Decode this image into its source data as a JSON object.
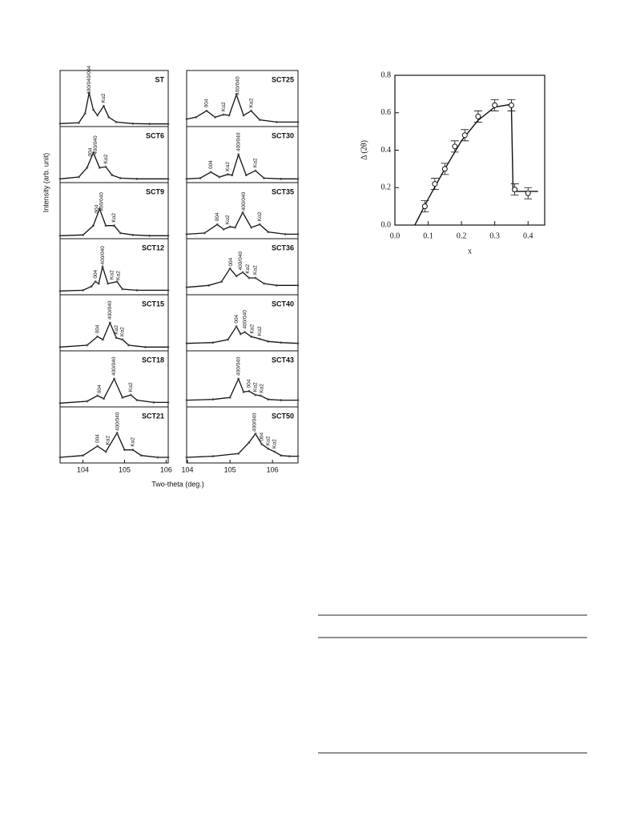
{
  "chart_data": [
    {
      "type": "panel-stack",
      "ylabel": "Intensity (arb. unit)",
      "xlabel": "Two-theta (deg.)",
      "xlim": [
        103.45,
        106.05
      ],
      "ylim": [
        0,
        1.5
      ],
      "xticks": [
        104,
        105,
        106
      ],
      "panels": [
        {
          "label": "ST",
          "x": [
            103.45,
            103.9,
            104.05,
            104.15,
            104.25,
            104.35,
            104.5,
            104.62,
            104.8,
            105.2,
            105.6,
            106.05
          ],
          "values": [
            0.08,
            0.1,
            0.35,
            0.9,
            0.45,
            0.3,
            0.55,
            0.25,
            0.12,
            0.08,
            0.07,
            0.07
          ],
          "annotations": [
            {
              "text": "400/040/004",
              "x": 104.15
            },
            {
              "text": "Kα2",
              "x": 104.5
            }
          ]
        },
        {
          "label": "SCT6",
          "x": [
            103.45,
            103.9,
            104.1,
            104.25,
            104.4,
            104.55,
            104.7,
            104.9,
            105.3,
            106.05
          ],
          "values": [
            0.1,
            0.15,
            0.4,
            0.8,
            0.4,
            0.42,
            0.2,
            0.12,
            0.1,
            0.1
          ],
          "annotations": [
            {
              "text": "004",
              "x": 104.18
            },
            {
              "text": "400/040",
              "x": 104.3
            },
            {
              "text": "Kα2",
              "x": 104.55
            }
          ]
        },
        {
          "label": "SCT9",
          "x": [
            103.45,
            104.0,
            104.25,
            104.4,
            104.55,
            104.75,
            104.9,
            105.2,
            105.6,
            106.05
          ],
          "values": [
            0.08,
            0.1,
            0.35,
            0.8,
            0.35,
            0.35,
            0.15,
            0.1,
            0.08,
            0.08
          ],
          "annotations": [
            {
              "text": "004",
              "x": 104.33
            },
            {
              "text": "400/040",
              "x": 104.45
            },
            {
              "text": "Kα2",
              "x": 104.75
            }
          ]
        },
        {
          "label": "SCT12",
          "x": [
            103.45,
            104.0,
            104.2,
            104.3,
            104.38,
            104.47,
            104.6,
            104.82,
            104.95,
            105.3,
            106.05
          ],
          "values": [
            0.1,
            0.12,
            0.22,
            0.35,
            0.3,
            0.75,
            0.3,
            0.35,
            0.15,
            0.12,
            0.12
          ],
          "annotations": [
            {
              "text": "004",
              "x": 104.3
            },
            {
              "text": "400/040",
              "x": 104.48
            },
            {
              "text": "Kα2",
              "x": 104.7
            },
            {
              "text": "Kα2",
              "x": 104.85
            }
          ]
        },
        {
          "label": "SCT15",
          "x": [
            103.45,
            104.1,
            104.35,
            104.48,
            104.65,
            104.8,
            104.95,
            105.1,
            105.5,
            106.05
          ],
          "values": [
            0.1,
            0.15,
            0.38,
            0.3,
            0.75,
            0.35,
            0.3,
            0.15,
            0.1,
            0.1
          ],
          "annotations": [
            {
              "text": "004",
              "x": 104.35
            },
            {
              "text": "400/040",
              "x": 104.65
            },
            {
              "text": "Kα2",
              "x": 104.8
            },
            {
              "text": "Kα2",
              "x": 104.95
            }
          ]
        },
        {
          "label": "SCT18",
          "x": [
            103.45,
            104.1,
            104.35,
            104.5,
            104.75,
            104.95,
            105.15,
            105.3,
            105.7,
            106.05
          ],
          "values": [
            0.1,
            0.15,
            0.3,
            0.22,
            0.75,
            0.25,
            0.32,
            0.18,
            0.12,
            0.12
          ],
          "annotations": [
            {
              "text": "004",
              "x": 104.4
            },
            {
              "text": "400/040",
              "x": 104.75
            },
            {
              "text": "Kα2",
              "x": 105.15
            }
          ]
        },
        {
          "label": "SCT21",
          "x": [
            103.45,
            104.0,
            104.35,
            104.55,
            104.82,
            105.0,
            105.2,
            105.4,
            105.8,
            106.05
          ],
          "values": [
            0.15,
            0.2,
            0.45,
            0.3,
            0.8,
            0.35,
            0.35,
            0.2,
            0.15,
            0.15
          ],
          "annotations": [
            {
              "text": "004",
              "x": 104.35
            },
            {
              "text": "Kα2",
              "x": 104.6
            },
            {
              "text": "400/040",
              "x": 104.83
            },
            {
              "text": "Kα2",
              "x": 105.2
            }
          ]
        }
      ]
    },
    {
      "type": "panel-stack",
      "xlim": [
        103.98,
        106.6
      ],
      "ylim": [
        0,
        1.5
      ],
      "xticks": [
        104,
        105,
        106
      ],
      "panels": [
        {
          "label": "SCT25",
          "x": [
            103.98,
            104.2,
            104.45,
            104.65,
            104.85,
            104.98,
            105.15,
            105.32,
            105.5,
            105.7,
            106.1,
            106.6
          ],
          "values": [
            0.2,
            0.25,
            0.42,
            0.25,
            0.32,
            0.3,
            0.85,
            0.3,
            0.42,
            0.18,
            0.12,
            0.12
          ],
          "annotations": [
            {
              "text": "004",
              "x": 104.45
            },
            {
              "text": "Kα2",
              "x": 104.85
            },
            {
              "text": "400/040",
              "x": 105.18
            },
            {
              "text": "Kα2",
              "x": 105.5
            }
          ]
        },
        {
          "label": "SCT30",
          "x": [
            103.98,
            104.3,
            104.55,
            104.75,
            104.95,
            105.05,
            105.2,
            105.38,
            105.6,
            105.8,
            106.2,
            106.6
          ],
          "values": [
            0.1,
            0.12,
            0.28,
            0.15,
            0.22,
            0.2,
            0.75,
            0.2,
            0.32,
            0.12,
            0.1,
            0.1
          ],
          "annotations": [
            {
              "text": "004",
              "x": 104.55
            },
            {
              "text": "Kα2",
              "x": 104.95
            },
            {
              "text": "400/040",
              "x": 105.2
            },
            {
              "text": "Kα2",
              "x": 105.6
            }
          ]
        },
        {
          "label": "SCT35",
          "x": [
            103.98,
            104.4,
            104.7,
            104.85,
            105.0,
            105.12,
            105.3,
            105.5,
            105.7,
            105.9,
            106.3,
            106.6
          ],
          "values": [
            0.12,
            0.15,
            0.38,
            0.25,
            0.32,
            0.3,
            0.7,
            0.3,
            0.38,
            0.18,
            0.12,
            0.12
          ],
          "annotations": [
            {
              "text": "004",
              "x": 104.7
            },
            {
              "text": "Kα2",
              "x": 104.95
            },
            {
              "text": "400/040",
              "x": 105.32
            },
            {
              "text": "Kα2",
              "x": 105.7
            }
          ]
        },
        {
          "label": "SCT36",
          "x": [
            103.98,
            104.5,
            104.8,
            105.0,
            105.15,
            105.3,
            105.45,
            105.6,
            105.8,
            106.1,
            106.6
          ],
          "values": [
            0.2,
            0.25,
            0.35,
            0.7,
            0.5,
            0.6,
            0.45,
            0.45,
            0.3,
            0.25,
            0.25
          ],
          "annotations": [
            {
              "text": "004",
              "x": 105.02
            },
            {
              "text": "400/040",
              "x": 105.25
            },
            {
              "text": "Kα2",
              "x": 105.42
            },
            {
              "text": "Kα2",
              "x": 105.6
            }
          ]
        },
        {
          "label": "SCT40",
          "x": [
            103.98,
            104.6,
            104.95,
            105.15,
            105.25,
            105.35,
            105.5,
            105.7,
            105.9,
            106.2,
            106.6
          ],
          "values": [
            0.2,
            0.22,
            0.3,
            0.65,
            0.45,
            0.5,
            0.38,
            0.32,
            0.25,
            0.22,
            0.2
          ],
          "annotations": [
            {
              "text": "004",
              "x": 105.15
            },
            {
              "text": "400/040",
              "x": 105.35
            },
            {
              "text": "Kα2",
              "x": 105.52
            },
            {
              "text": "Kα2",
              "x": 105.7
            }
          ]
        },
        {
          "label": "SCT43",
          "x": [
            103.98,
            104.6,
            105.0,
            105.2,
            105.32,
            105.45,
            105.6,
            105.72,
            105.9,
            106.2,
            106.6
          ],
          "values": [
            0.18,
            0.2,
            0.25,
            0.75,
            0.4,
            0.42,
            0.32,
            0.3,
            0.2,
            0.18,
            0.18
          ],
          "annotations": [
            {
              "text": "400/040",
              "x": 105.2
            },
            {
              "text": "004",
              "x": 105.45
            },
            {
              "text": "Kα2",
              "x": 105.6
            },
            {
              "text": "Kα2",
              "x": 105.75
            }
          ]
        },
        {
          "label": "SCT50",
          "x": [
            103.98,
            104.6,
            105.2,
            105.45,
            105.6,
            105.75,
            105.9,
            106.05,
            106.2,
            106.4,
            106.6
          ],
          "values": [
            0.15,
            0.18,
            0.25,
            0.55,
            0.78,
            0.5,
            0.38,
            0.3,
            0.2,
            0.18,
            0.18
          ],
          "annotations": [
            {
              "text": "400/040",
              "x": 105.58
            },
            {
              "text": "004",
              "x": 105.75
            },
            {
              "text": "Kα2",
              "x": 105.9
            },
            {
              "text": "Kα2",
              "x": 106.05
            }
          ]
        }
      ]
    },
    {
      "type": "scatter",
      "xlabel": "x",
      "ylabel": "Δ (2θ)",
      "x": [
        0.09,
        0.12,
        0.15,
        0.18,
        0.21,
        0.25,
        0.3,
        0.35,
        0.36,
        0.4
      ],
      "values": [
        0.1,
        0.22,
        0.3,
        0.42,
        0.48,
        0.58,
        0.64,
        0.64,
        0.19,
        0.17
      ],
      "errors": [
        0.03,
        0.03,
        0.03,
        0.03,
        0.03,
        0.03,
        0.03,
        0.03,
        0.03,
        0.03
      ],
      "fit": {
        "x": [
          0.06,
          0.1,
          0.15,
          0.2,
          0.25,
          0.3,
          0.35,
          0.355,
          0.43
        ],
        "values": [
          0,
          0.14,
          0.3,
          0.45,
          0.56,
          0.63,
          0.645,
          0.18,
          0.18
        ]
      },
      "xlim": [
        0,
        0.45
      ],
      "ylim": [
        0,
        0.8
      ],
      "xticks": [
        {
          "value": 0,
          "label": "0.0"
        },
        0.1,
        0.2,
        0.3,
        0.4
      ],
      "yticks": [
        {
          "value": 0,
          "label": "0.0"
        },
        0.2,
        0.4,
        0.6,
        0.8
      ]
    }
  ]
}
